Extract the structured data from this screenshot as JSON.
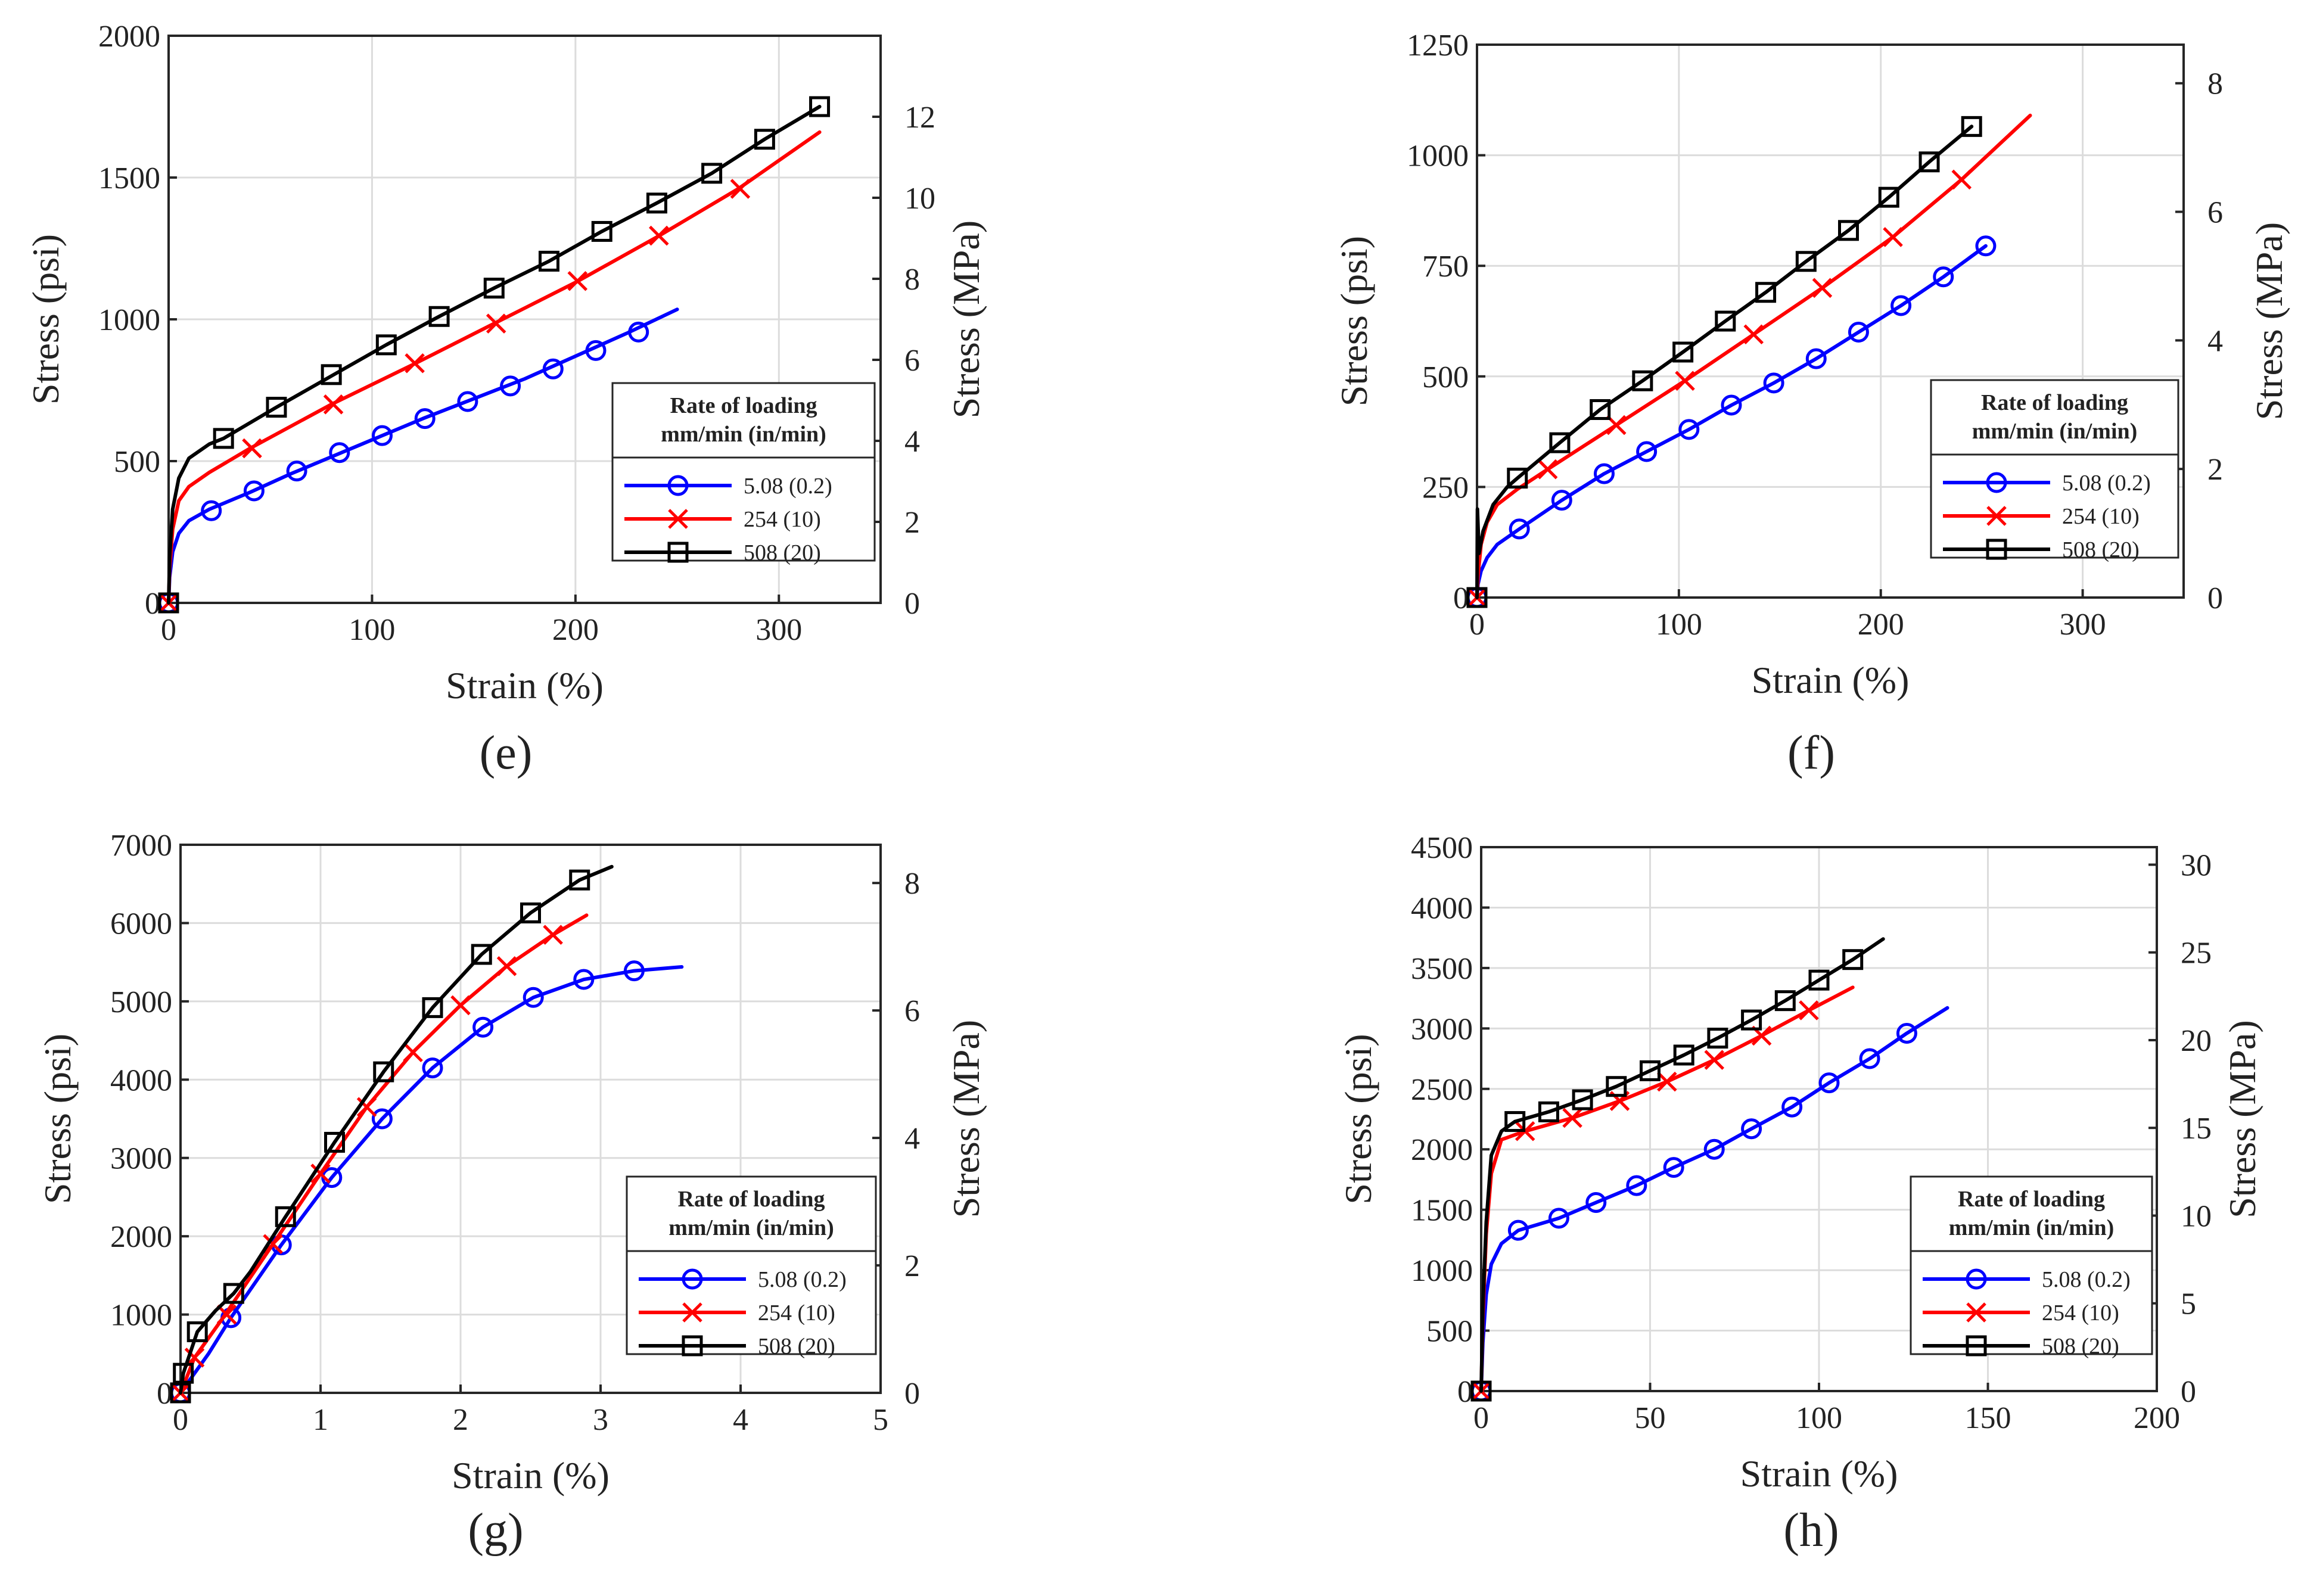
{
  "chart_data": [
    {
      "type": "line",
      "caption": "(e)",
      "xlabel": "Strain (%)",
      "ylabel": "Stress (psi)",
      "ylabel_right": "Stress (MPa)",
      "xlim": [
        0,
        350
      ],
      "ylim": [
        0,
        2000
      ],
      "y2lim": [
        0,
        14
      ],
      "xticks": [
        0,
        100,
        200,
        300
      ],
      "yticks": [
        0,
        500,
        1000,
        1500,
        2000
      ],
      "y2ticks": [
        0,
        2,
        4,
        6,
        8,
        10,
        12
      ],
      "grid": true,
      "legend": {
        "placement": "center-right",
        "title": "Rate of loading",
        "subtitle": "mm/min (in/min)"
      },
      "series": [
        {
          "name": "5.08 (0.2)",
          "color": "#0000ff",
          "marker": "circle",
          "x": [
            0,
            0.5,
            2,
            5,
            10,
            20,
            40,
            60,
            80,
            100,
            125,
            150,
            175,
            200,
            225,
            250
          ],
          "y": [
            0,
            90,
            180,
            245,
            290,
            330,
            390,
            455,
            515,
            575,
            650,
            720,
            790,
            870,
            950,
            1035
          ],
          "mx": [
            0,
            21,
            42,
            63,
            84,
            105,
            126,
            147,
            168,
            189,
            210,
            231
          ],
          "my": [
            0,
            325,
            395,
            465,
            530,
            590,
            650,
            710,
            765,
            825,
            890,
            955
          ]
        },
        {
          "name": "254  (10)",
          "color": "#ff0000",
          "marker": "x",
          "x": [
            0,
            0.5,
            2,
            5,
            10,
            20,
            40,
            80,
            120,
            160,
            200,
            240,
            280,
            320
          ],
          "y": [
            0,
            120,
            260,
            360,
            410,
            460,
            545,
            700,
            840,
            985,
            1130,
            1290,
            1460,
            1660
          ],
          "mx": [
            0,
            41,
            81,
            121,
            161,
            201,
            241,
            281
          ],
          "my": [
            0,
            545,
            700,
            845,
            985,
            1135,
            1295,
            1460
          ]
        },
        {
          "name": "508  (20)",
          "color": "#000000",
          "marker": "square",
          "x": [
            0,
            0.5,
            2,
            5,
            10,
            20,
            27,
            53,
            80,
            107,
            133,
            160,
            187,
            213,
            240,
            267,
            293,
            320
          ],
          "y": [
            0,
            160,
            330,
            440,
            510,
            560,
            580,
            690,
            800,
            910,
            1010,
            1110,
            1205,
            1310,
            1410,
            1515,
            1635,
            1750
          ],
          "mx": [
            0,
            27,
            53,
            80,
            107,
            133,
            160,
            187,
            213,
            240,
            267,
            293,
            320
          ],
          "my": [
            0,
            580,
            690,
            805,
            910,
            1010,
            1110,
            1205,
            1310,
            1410,
            1515,
            1635,
            1750
          ]
        }
      ]
    },
    {
      "type": "line",
      "caption": "(f)",
      "xlabel": "Strain (%)",
      "ylabel": "Stress (psi)",
      "ylabel_right": "Stress (MPa)",
      "xlim": [
        0,
        350
      ],
      "ylim": [
        0,
        1250
      ],
      "y2lim": [
        0,
        8.6
      ],
      "xticks": [
        0,
        100,
        200,
        300
      ],
      "yticks": [
        0,
        250,
        500,
        750,
        1000,
        1250
      ],
      "y2ticks": [
        0,
        2,
        4,
        6,
        8
      ],
      "grid": true,
      "legend": {
        "placement": "center-right",
        "title": "Rate of loading",
        "subtitle": "mm/min (in/min)"
      },
      "series": [
        {
          "name": "5.08 (0.2)",
          "color": "#0000ff",
          "marker": "circle",
          "x": [
            0,
            0.5,
            2,
            5,
            10,
            21,
            42,
            63,
            84,
            105,
            126,
            147,
            168,
            189,
            210,
            231,
            252
          ],
          "y": [
            0,
            30,
            60,
            90,
            120,
            155,
            220,
            280,
            330,
            380,
            435,
            485,
            540,
            600,
            660,
            725,
            795
          ],
          "mx": [
            0,
            21,
            42,
            63,
            84,
            105,
            126,
            147,
            168,
            189,
            210,
            231,
            252
          ],
          "my": [
            0,
            155,
            220,
            280,
            330,
            380,
            435,
            485,
            540,
            600,
            660,
            725,
            795
          ]
        },
        {
          "name": "254  (10)",
          "color": "#ff0000",
          "marker": "x",
          "x": [
            0,
            0.5,
            2,
            5,
            10,
            20,
            35,
            69,
            103,
            137,
            171,
            206,
            240,
            274
          ],
          "y": [
            0,
            50,
            120,
            170,
            210,
            245,
            290,
            390,
            490,
            595,
            700,
            815,
            945,
            1090
          ],
          "mx": [
            0,
            35,
            69,
            103,
            137,
            171,
            206,
            240
          ],
          "my": [
            0,
            290,
            390,
            490,
            595,
            700,
            815,
            945
          ]
        },
        {
          "name": "508  (20)",
          "color": "#000000",
          "marker": "square",
          "x": [
            0,
            0.2,
            1,
            3,
            8,
            15,
            20,
            41,
            61,
            82,
            102,
            123,
            143,
            163,
            184,
            204,
            224,
            245
          ],
          "y": [
            0,
            200,
            100,
            150,
            210,
            250,
            270,
            350,
            425,
            490,
            555,
            625,
            690,
            760,
            830,
            905,
            985,
            1065
          ],
          "mx": [
            0,
            20,
            41,
            61,
            82,
            102,
            123,
            143,
            163,
            184,
            204,
            224,
            245
          ],
          "my": [
            0,
            270,
            350,
            425,
            490,
            555,
            625,
            690,
            760,
            830,
            905,
            985,
            1065
          ]
        }
      ]
    },
    {
      "type": "line",
      "caption": "(g)",
      "xlabel": "Strain (%)",
      "ylabel": "Stress (psi)",
      "ylabel_right": "Stress (MPa)",
      "xlim": [
        0,
        5
      ],
      "ylim": [
        0,
        7000
      ],
      "y2lim": [
        0,
        8.6
      ],
      "xticks": [
        0,
        1,
        2,
        3,
        4,
        5
      ],
      "yticks": [
        0,
        1000,
        2000,
        3000,
        4000,
        5000,
        6000,
        7000
      ],
      "y2ticks": [
        0,
        2,
        4,
        6,
        8
      ],
      "grid": true,
      "legend": {
        "placement": "bottom-right",
        "title": "Rate of loading",
        "subtitle": "mm/min (in/min)"
      },
      "series": [
        {
          "name": "5.08 (0.2)",
          "color": "#0000ff",
          "marker": "circle",
          "x": [
            0,
            0.2,
            0.36,
            0.72,
            1.08,
            1.44,
            1.8,
            2.16,
            2.52,
            2.88,
            3.24,
            3.58
          ],
          "y": [
            0,
            500,
            960,
            1890,
            2750,
            3500,
            4150,
            4670,
            5050,
            5280,
            5390,
            5440
          ],
          "mx": [
            0,
            0.36,
            0.72,
            1.08,
            1.44,
            1.8,
            2.16,
            2.52,
            2.88,
            3.24
          ],
          "my": [
            0,
            960,
            1890,
            2750,
            3500,
            4150,
            4670,
            5050,
            5280,
            5390
          ]
        },
        {
          "name": "254  (10)",
          "color": "#ff0000",
          "marker": "x",
          "x": [
            0,
            0.1,
            0.3,
            0.66,
            1.0,
            1.33,
            1.66,
            2.0,
            2.33,
            2.66,
            2.9
          ],
          "y": [
            0,
            450,
            950,
            1900,
            2800,
            3650,
            4350,
            4950,
            5450,
            5850,
            6100
          ],
          "mx": [
            0,
            0.1,
            0.33,
            0.66,
            1.0,
            1.33,
            1.66,
            2.0,
            2.33,
            2.66
          ],
          "my": [
            0,
            450,
            1000,
            1900,
            2800,
            3650,
            4350,
            4950,
            5450,
            5850
          ]
        },
        {
          "name": "508  (20)",
          "color": "#000000",
          "marker": "square",
          "x": [
            0,
            0.02,
            0.12,
            0.25,
            0.38,
            0.5,
            0.75,
            1.1,
            1.45,
            1.8,
            2.15,
            2.5,
            2.85,
            3.08
          ],
          "y": [
            0,
            250,
            780,
            1050,
            1270,
            1550,
            2250,
            3200,
            4100,
            4920,
            5600,
            6130,
            6550,
            6720
          ],
          "mx": [
            0,
            0.02,
            0.12,
            0.38,
            0.75,
            1.1,
            1.45,
            1.8,
            2.15,
            2.5,
            2.85
          ],
          "my": [
            0,
            250,
            780,
            1270,
            2250,
            3200,
            4100,
            4920,
            5600,
            6130,
            6550
          ]
        }
      ]
    },
    {
      "type": "line",
      "caption": "(h)",
      "xlabel": "Strain (%)",
      "ylabel": "Stress (psi)",
      "ylabel_right": "Stress (MPa)",
      "xlim": [
        0,
        200
      ],
      "ylim": [
        0,
        4500
      ],
      "y2lim": [
        0,
        31
      ],
      "xticks": [
        0,
        50,
        100,
        150,
        200
      ],
      "yticks": [
        0,
        500,
        1000,
        1500,
        2000,
        2500,
        3000,
        3500,
        4000,
        4500
      ],
      "y2ticks": [
        0,
        5,
        10,
        15,
        20,
        25,
        30
      ],
      "grid": true,
      "legend": {
        "placement": "bottom-right",
        "title": "Rate of loading",
        "subtitle": "mm/min (in/min)"
      },
      "series": [
        {
          "name": "5.08 (0.2)",
          "color": "#0000ff",
          "marker": "circle",
          "x": [
            0,
            0.5,
            1.5,
            3,
            6,
            11,
            23,
            34,
            46,
            57,
            69,
            80,
            92,
            103,
            115,
            126,
            138
          ],
          "y": [
            0,
            400,
            800,
            1050,
            1220,
            1330,
            1430,
            1560,
            1700,
            1850,
            2000,
            2170,
            2350,
            2550,
            2750,
            2960,
            3170
          ],
          "mx": [
            0,
            11,
            23,
            34,
            46,
            57,
            69,
            80,
            92,
            103,
            115,
            126
          ],
          "my": [
            0,
            1330,
            1430,
            1560,
            1700,
            1850,
            2000,
            2170,
            2350,
            2550,
            2750,
            2960
          ]
        },
        {
          "name": "254  (10)",
          "color": "#ff0000",
          "marker": "x",
          "x": [
            0,
            0.5,
            1.5,
            3,
            6,
            13,
            27,
            41,
            55,
            69,
            83,
            97,
            110
          ],
          "y": [
            0,
            600,
            1300,
            1800,
            2080,
            2150,
            2260,
            2400,
            2560,
            2740,
            2940,
            3150,
            3340
          ],
          "mx": [
            0,
            13,
            27,
            41,
            55,
            69,
            83,
            97
          ],
          "my": [
            0,
            2150,
            2260,
            2400,
            2560,
            2740,
            2940,
            3150
          ]
        },
        {
          "name": "508  (20)",
          "color": "#000000",
          "marker": "square",
          "x": [
            0,
            0.5,
            1.5,
            3,
            6,
            10,
            20,
            30,
            40,
            50,
            60,
            70,
            80,
            90,
            100,
            110,
            119
          ],
          "y": [
            0,
            700,
            1400,
            1950,
            2150,
            2230,
            2310,
            2410,
            2520,
            2650,
            2780,
            2920,
            3070,
            3230,
            3400,
            3570,
            3740
          ],
          "mx": [
            0,
            10,
            20,
            30,
            40,
            50,
            60,
            70,
            80,
            90,
            100,
            110
          ],
          "my": [
            0,
            2230,
            2310,
            2410,
            2520,
            2650,
            2780,
            2920,
            3070,
            3230,
            3400,
            3570
          ]
        }
      ]
    }
  ]
}
